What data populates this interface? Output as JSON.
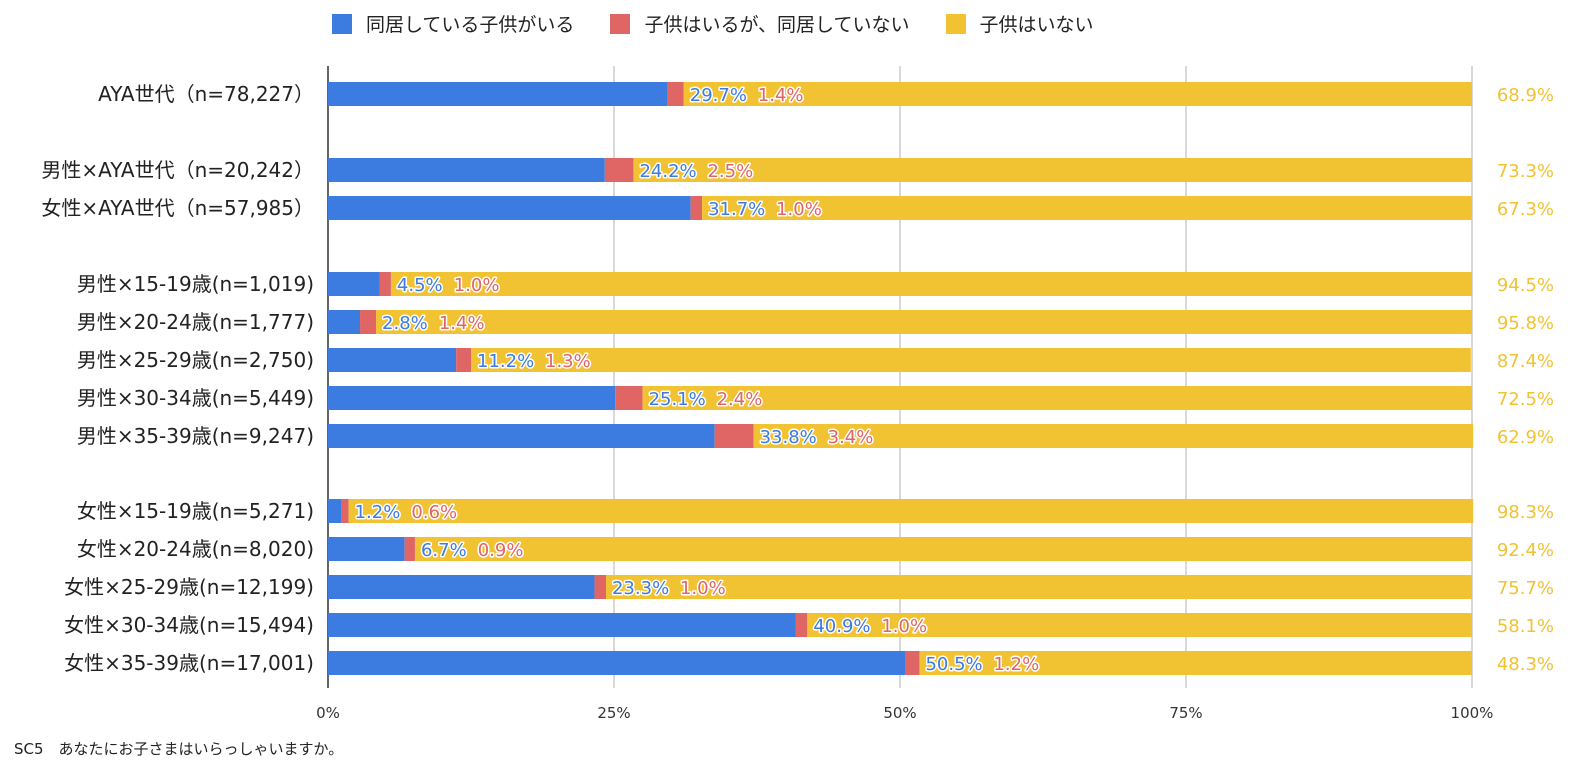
{
  "legend": [
    {
      "name": "同居している子供がいる",
      "color": "#3c7be0"
    },
    {
      "name": "子供はいるが、同居していない",
      "color": "#e06666"
    },
    {
      "name": "子供はいない",
      "color": "#f1c232"
    }
  ],
  "question": "SC5　あなたにお子さまはいらっしゃいますか。",
  "chart_data": {
    "type": "bar",
    "orientation": "horizontal",
    "stacked": true,
    "xlim": [
      0,
      100
    ],
    "x_ticks": [
      "0%",
      "25%",
      "50%",
      "75%",
      "100%"
    ],
    "grid": true,
    "legend_position": "top",
    "categories": [
      "AYA世代（n=78,227）",
      "男性×AYA世代（n=20,242）",
      "女性×AYA世代（n=57,985）",
      "男性×15-19歳(n=1,019)",
      "男性×20-24歳(n=1,777)",
      "男性×25-29歳(n=2,750)",
      "男性×30-34歳(n=5,449)",
      "男性×35-39歳(n=9,247)",
      "女性×15-19歳(n=5,271)",
      "女性×20-24歳(n=8,020)",
      "女性×25-29歳(n=12,199)",
      "女性×30-34歳(n=15,494)",
      "女性×35-39歳(n=17,001)"
    ],
    "groups": [
      [
        0
      ],
      [
        1,
        2
      ],
      [
        3,
        4,
        5,
        6,
        7
      ],
      [
        8,
        9,
        10,
        11,
        12
      ]
    ],
    "series": [
      {
        "name": "同居している子供がいる",
        "color": "#3c7be0",
        "values": [
          29.7,
          24.2,
          31.7,
          4.5,
          2.8,
          11.2,
          25.1,
          33.8,
          1.2,
          6.7,
          23.3,
          40.9,
          50.5
        ],
        "labels": [
          "29.7%",
          "24.2%",
          "31.7%",
          "4.5%",
          "2.8%",
          "11.2%",
          "25.1%",
          "33.8%",
          "1.2%",
          "6.7%",
          "23.3%",
          "40.9%",
          "50.5%"
        ]
      },
      {
        "name": "子供はいるが、同居していない",
        "color": "#e06666",
        "values": [
          1.4,
          2.5,
          1.0,
          1.0,
          1.4,
          1.3,
          2.4,
          3.4,
          0.6,
          0.9,
          1.0,
          1.0,
          1.2
        ],
        "labels": [
          "1.4%",
          "2.5%",
          "1.0%",
          "1.0%",
          "1.4%",
          "1.3%",
          "2.4%",
          "3.4%",
          "0.6%",
          "0.9%",
          "1.0%",
          "1.0%",
          "1.2%"
        ]
      },
      {
        "name": "子供はいない",
        "color": "#f1c232",
        "values": [
          68.9,
          73.3,
          67.3,
          94.5,
          95.8,
          87.4,
          72.5,
          62.9,
          98.3,
          92.4,
          75.7,
          58.1,
          48.3
        ],
        "labels": [
          "68.9%",
          "73.3%",
          "67.3%",
          "94.5%",
          "95.8%",
          "87.4%",
          "72.5%",
          "62.9%",
          "98.3%",
          "92.4%",
          "75.7%",
          "58.1%",
          "48.3%"
        ]
      }
    ]
  }
}
